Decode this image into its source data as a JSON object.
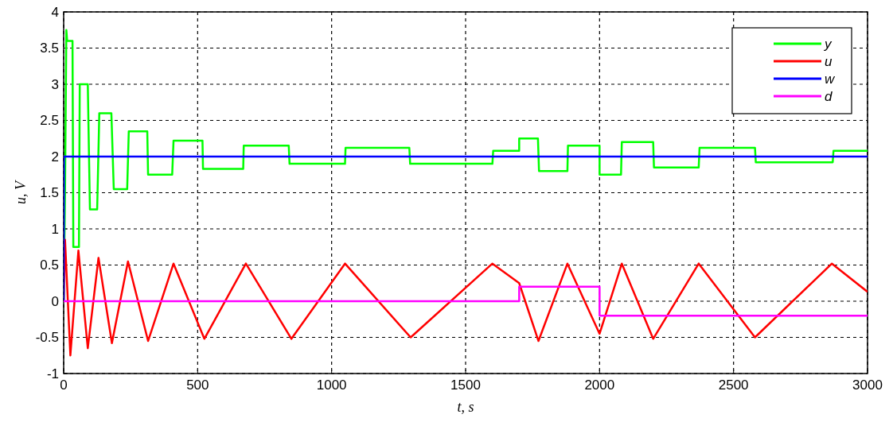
{
  "chart_data": {
    "type": "line",
    "xlabel": "t, s",
    "ylabel": "u, V",
    "xlim": [
      0,
      3000
    ],
    "ylim": [
      -1,
      4
    ],
    "xticks": [
      0,
      500,
      1000,
      1500,
      2000,
      2500,
      3000
    ],
    "yticks": [
      -1,
      -0.5,
      0,
      0.5,
      1,
      1.5,
      2,
      2.5,
      3,
      3.5,
      4
    ],
    "grid": true,
    "legend": "top right",
    "line_style": "solid",
    "marker": "none",
    "series": [
      {
        "name": "y",
        "color": "#00ff00",
        "x": [
          0,
          5,
          10,
          13,
          33,
          36,
          57,
          60,
          90,
          98,
          125,
          133,
          178,
          187,
          237,
          243,
          312,
          315,
          405,
          410,
          518,
          520,
          670,
          672,
          840,
          843,
          1050,
          1052,
          1290,
          1293,
          1600,
          1603,
          1700,
          1700,
          1770,
          1774,
          1880,
          1882,
          2000,
          2000,
          2080,
          2083,
          2200,
          2203,
          2370,
          2373,
          2580,
          2583,
          2870,
          2873,
          3000
        ],
        "values": [
          0,
          1.5,
          3.75,
          3.6,
          3.6,
          0.75,
          0.75,
          3.0,
          3.0,
          1.27,
          1.27,
          2.6,
          2.6,
          1.55,
          1.55,
          2.35,
          2.35,
          1.75,
          1.75,
          2.22,
          2.22,
          1.83,
          1.83,
          2.15,
          2.15,
          1.9,
          1.9,
          2.12,
          2.12,
          1.9,
          1.9,
          2.08,
          2.08,
          2.25,
          2.25,
          1.8,
          1.8,
          2.15,
          2.15,
          1.75,
          1.75,
          2.2,
          2.2,
          1.85,
          1.85,
          2.12,
          2.12,
          1.92,
          1.92,
          2.08,
          2.08
        ]
      },
      {
        "name": "u",
        "color": "#ff0000",
        "x": [
          0,
          5,
          25,
          55,
          90,
          130,
          180,
          240,
          315,
          410,
          525,
          680,
          850,
          1050,
          1295,
          1600,
          1700,
          1772,
          1880,
          2000,
          2083,
          2200,
          2370,
          2580,
          2867,
          3000
        ],
        "values": [
          0,
          0.85,
          -0.75,
          0.7,
          -0.65,
          0.6,
          -0.58,
          0.55,
          -0.55,
          0.52,
          -0.52,
          0.52,
          -0.52,
          0.52,
          -0.5,
          0.52,
          0.25,
          -0.55,
          0.52,
          -0.45,
          0.52,
          -0.52,
          0.52,
          -0.5,
          0.52,
          0.13
        ]
      },
      {
        "name": "w",
        "color": "#0000ff",
        "x": [
          0,
          1,
          3000
        ],
        "values": [
          0,
          2,
          2
        ]
      },
      {
        "name": "d",
        "color": "#ff00ff",
        "x": [
          0,
          1700,
          1700,
          2000,
          2000,
          3000
        ],
        "values": [
          0,
          0,
          0.2,
          0.2,
          -0.2,
          -0.2
        ]
      }
    ]
  }
}
